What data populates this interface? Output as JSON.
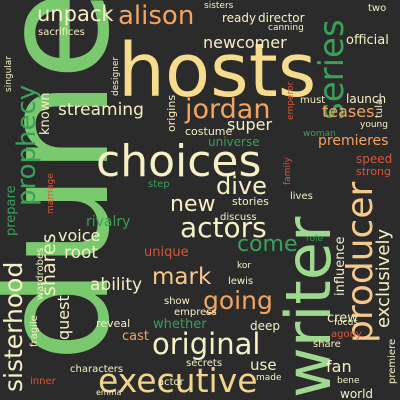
{
  "colors": {
    "background": "#2b2b2b",
    "green_light": "#7bc96f",
    "green": "#3aa05a",
    "green_dark": "#2e8b57",
    "green_pale": "#9fd88f",
    "cream": "#f6f0c4",
    "orange": "#f4a460",
    "peach": "#f7c88c",
    "red": "#d9573a",
    "gray": "#bcbcbc"
  },
  "words": {
    "dune": "dune",
    "hosts": "hosts",
    "writer": "writer",
    "choices": "choices",
    "producer": "producer",
    "executive": "executive",
    "original": "original",
    "series": "series",
    "alison": "alison",
    "prophecy": "prophecy",
    "jordan": "jordan",
    "unpack": "unpack",
    "newcomer": "newcomer",
    "official": "official",
    "sisterhood": "sisterhood",
    "actors": "actors",
    "going": "going",
    "mark": "mark",
    "dive": "dive",
    "come": "come",
    "new": "new",
    "shares": "shares",
    "streaming": "streaming",
    "teases": "teases",
    "launch": "launch",
    "super": "super",
    "premieres": "premieres",
    "exclusively": "exclusively",
    "ability": "ability",
    "whether": "whether",
    "voice": "voice",
    "root": "root",
    "rivalry": "rivalry",
    "unique": "unique",
    "quest": "quest",
    "fan": "fan",
    "crew": "crew",
    "influence": "influence",
    "use": "use",
    "deep": "deep",
    "cast": "cast",
    "reveal": "reveal",
    "prepare": "prepare",
    "known": "known",
    "sacrifices": "sacrifices",
    "singular": "singular",
    "marriage": "marriage",
    "inner": "inner",
    "wardrobes": "wardrobes",
    "fragile": "fragile",
    "characters": "characters",
    "emma": "emma",
    "secrets": "secrets",
    "actor": "actor",
    "made": "made",
    "world": "world",
    "bene": "bene",
    "premiere": "premiere",
    "share": "share",
    "agony": "agony",
    "focus": "focus",
    "lewis": "lewis",
    "kor": "kor",
    "show": "show",
    "empress": "empress",
    "role": "role",
    "lives": "lives",
    "discuss": "discuss",
    "stories": "stories",
    "step": "step",
    "universe": "universe",
    "costume": "costume",
    "origins": "origins",
    "designer": "designer",
    "sisters": "sisters",
    "ready": "ready",
    "director": "director",
    "canning": "canning",
    "two": "two",
    "emperor": "emperor",
    "tula": "tula",
    "young": "young",
    "must": "must",
    "woman": "woman",
    "speed": "speed",
    "strong": "strong",
    "family": "family"
  }
}
